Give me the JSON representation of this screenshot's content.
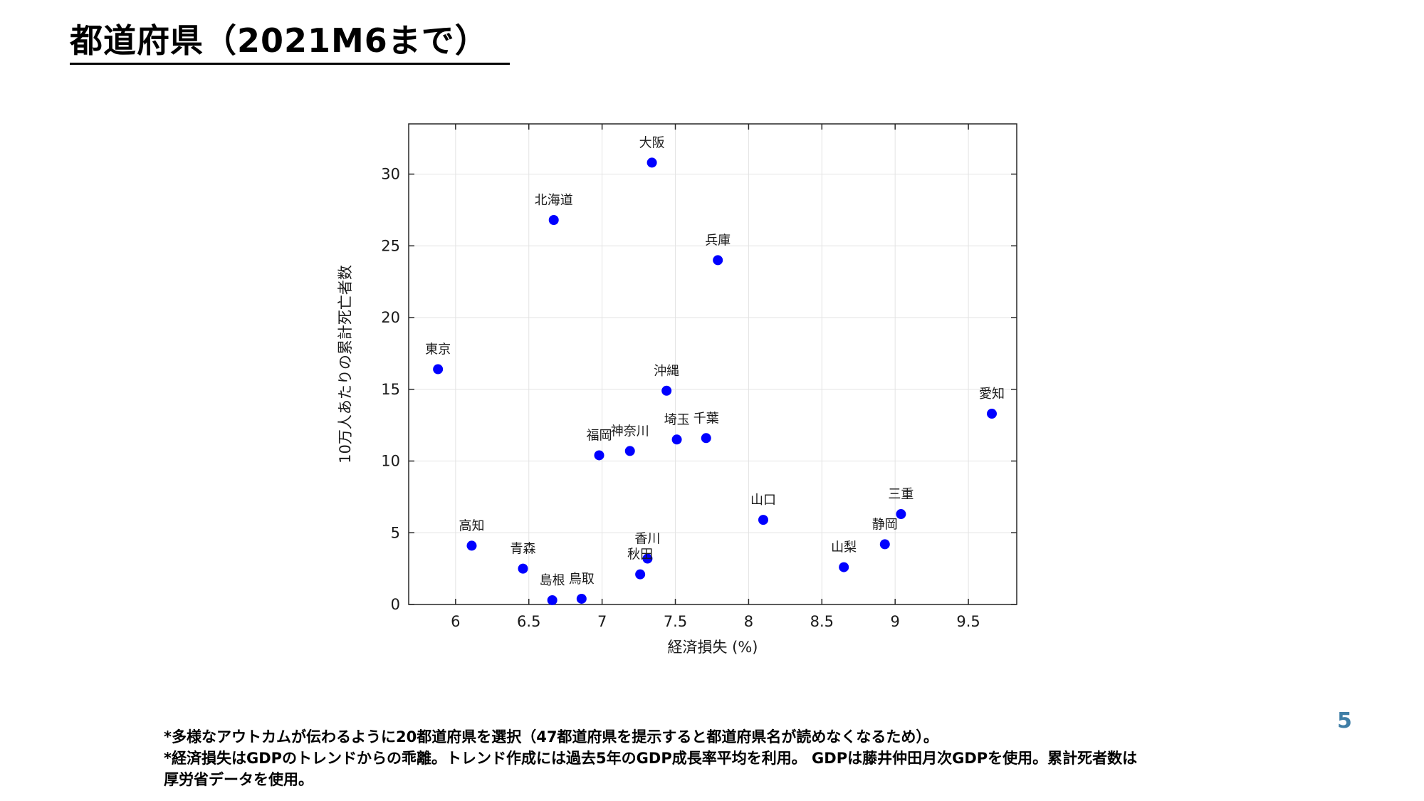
{
  "slide": {
    "title": "都道府県（2021M6まで）",
    "page_number": "5"
  },
  "footnotes": [
    "*多様なアウトカムが伝わるように20都道府県を選択（47都道府県を提示すると都道府県名が読めなくなるため）。",
    "*経済損失はGDPのトレンドからの乖離。トレンド作成には過去5年のGDP成長率平均を利用。 GDPは藤井仲田月次GDPを使用。累計死者数は",
    "厚労省データを使用。"
  ],
  "chart_data": {
    "type": "scatter",
    "title": "",
    "xlabel": "経済損失 (%)",
    "ylabel": "10万人あたりの累計死亡者数",
    "xlim": [
      5.68,
      9.83
    ],
    "ylim": [
      0,
      33.5
    ],
    "x_ticks": [
      6,
      6.5,
      7,
      7.5,
      8,
      8.5,
      9,
      9.5
    ],
    "x_tick_labels": [
      "6",
      "6.5",
      "7",
      "7.5",
      "8",
      "8.5",
      "9",
      "9.5"
    ],
    "y_ticks": [
      0,
      5,
      10,
      15,
      20,
      25,
      30
    ],
    "y_tick_labels": [
      "0",
      "5",
      "10",
      "15",
      "20",
      "25",
      "30"
    ],
    "grid": true,
    "marker_color": "#0000ff",
    "points": [
      {
        "label": "大阪",
        "x": 7.34,
        "y": 30.8
      },
      {
        "label": "北海道",
        "x": 6.67,
        "y": 26.8
      },
      {
        "label": "兵庫",
        "x": 7.79,
        "y": 24.0
      },
      {
        "label": "東京",
        "x": 5.88,
        "y": 16.4
      },
      {
        "label": "沖縄",
        "x": 7.44,
        "y": 14.9
      },
      {
        "label": "愛知",
        "x": 9.66,
        "y": 13.3
      },
      {
        "label": "埼玉",
        "x": 7.51,
        "y": 11.5
      },
      {
        "label": "千葉",
        "x": 7.71,
        "y": 11.6
      },
      {
        "label": "福岡",
        "x": 6.98,
        "y": 10.4
      },
      {
        "label": "神奈川",
        "x": 7.19,
        "y": 10.7
      },
      {
        "label": "山口",
        "x": 8.1,
        "y": 5.9
      },
      {
        "label": "三重",
        "x": 9.04,
        "y": 6.3
      },
      {
        "label": "静岡",
        "x": 8.93,
        "y": 4.2
      },
      {
        "label": "高知",
        "x": 6.11,
        "y": 4.1
      },
      {
        "label": "香川",
        "x": 7.31,
        "y": 3.2
      },
      {
        "label": "秋田",
        "x": 7.26,
        "y": 2.1
      },
      {
        "label": "山梨",
        "x": 8.65,
        "y": 2.6
      },
      {
        "label": "青森",
        "x": 6.46,
        "y": 2.5
      },
      {
        "label": "島根",
        "x": 6.66,
        "y": 0.3
      },
      {
        "label": "鳥取",
        "x": 6.86,
        "y": 0.4
      }
    ]
  }
}
